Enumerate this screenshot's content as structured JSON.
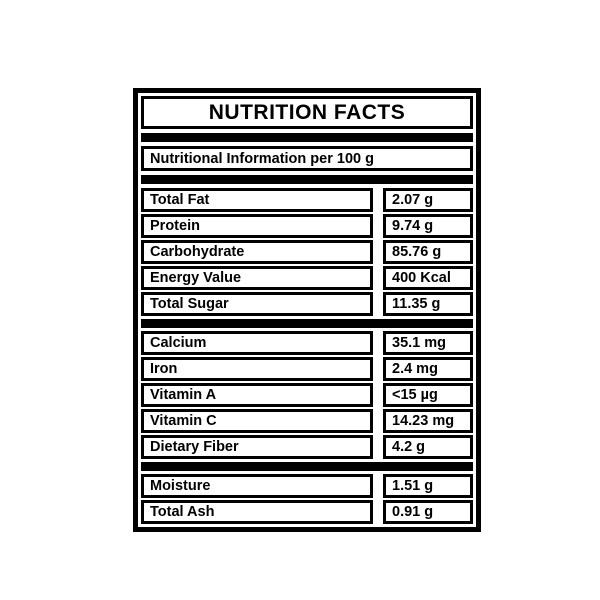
{
  "page": {
    "background_color": "#ffffff"
  },
  "label": {
    "title": "NUTRITION FACTS",
    "subtitle": "Nutritional Information per 100 g",
    "colors": {
      "frame": "#000000",
      "cell_background": "#ffffff",
      "text": "#000000"
    },
    "sections": [
      {
        "rows": [
          {
            "name": "Total Fat",
            "value": "2.07 g"
          },
          {
            "name": "Protein",
            "value": "9.74 g"
          },
          {
            "name": "Carbohydrate",
            "value": "85.76 g"
          },
          {
            "name": "Energy Value",
            "value": "400 Kcal"
          },
          {
            "name": "Total Sugar",
            "value": "11.35 g"
          }
        ]
      },
      {
        "rows": [
          {
            "name": "Calcium",
            "value": "35.1 mg"
          },
          {
            "name": "Iron",
            "value": "2.4 mg"
          },
          {
            "name": "Vitamin A",
            "value": "<15 µg"
          },
          {
            "name": "Vitamin C",
            "value": "14.23 mg"
          },
          {
            "name": "Dietary Fiber",
            "value": "4.2 g"
          }
        ]
      },
      {
        "rows": [
          {
            "name": "Moisture",
            "value": "1.51 g"
          },
          {
            "name": "Total Ash",
            "value": "0.91 g"
          }
        ]
      }
    ]
  }
}
